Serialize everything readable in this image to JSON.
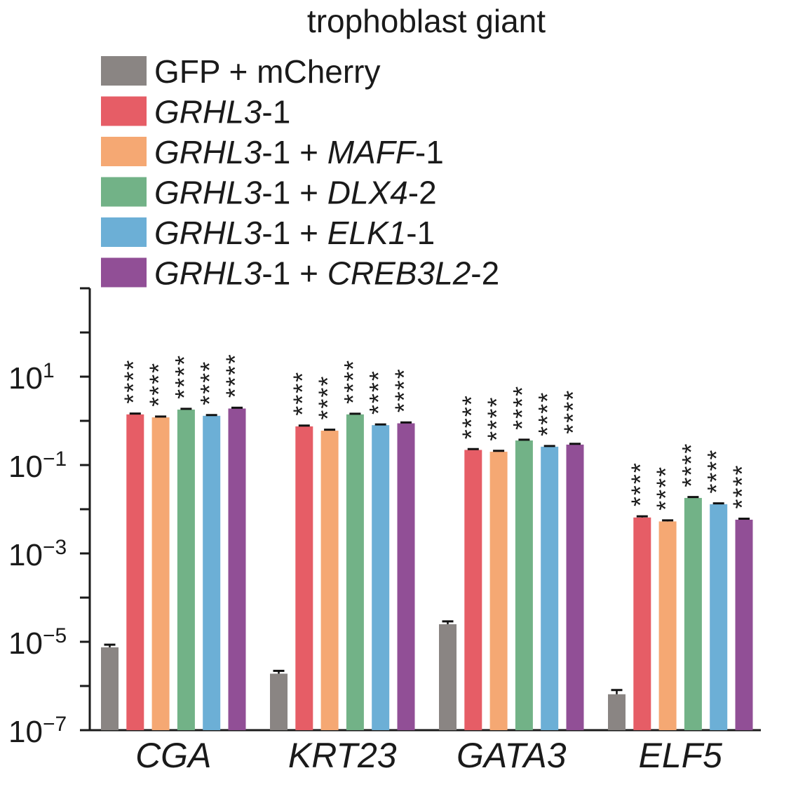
{
  "chart_data": {
    "type": "bar",
    "title": "trophoblast giant",
    "yscale": "log",
    "ylim": [
      1e-07,
      1000
    ],
    "ytick_labels": [
      {
        "base": "10",
        "exp": "1",
        "value": 10
      },
      {
        "base": "10",
        "exp": "−1",
        "value": 0.1
      },
      {
        "base": "10",
        "exp": "−3",
        "value": 0.001
      },
      {
        "base": "10",
        "exp": "−5",
        "value": 1e-05
      },
      {
        "base": "10",
        "exp": "−7",
        "value": 1e-07
      }
    ],
    "categories": [
      "CGA",
      "KRT23",
      "GATA3",
      "ELF5"
    ],
    "series": [
      {
        "name": "GFP + mCherry",
        "name_parts": [
          {
            "t": "GFP + mCherry",
            "i": false
          }
        ],
        "color": "#8a8583",
        "values": [
          7.5e-06,
          1.9e-06,
          2.5e-05,
          6.5e-07
        ],
        "error": [
          1.1e-06,
          3e-07,
          4e-06,
          1.6e-07
        ],
        "stars": [
          "",
          "",
          "",
          ""
        ]
      },
      {
        "name": "GRHL3-1",
        "name_parts": [
          {
            "t": "GRHL3",
            "i": true
          },
          {
            "t": "-1",
            "i": false
          }
        ],
        "color": "#e65d66",
        "values": [
          1.4,
          0.75,
          0.22,
          0.0065
        ],
        "error": [
          0.06,
          0.03,
          0.01,
          0.0004
        ],
        "stars": [
          "****",
          "****",
          "****",
          "****"
        ]
      },
      {
        "name": "GRHL3-1 + MAFF-1",
        "name_parts": [
          {
            "t": "GRHL3",
            "i": true
          },
          {
            "t": "-1 + ",
            "i": false
          },
          {
            "t": "MAFF",
            "i": true
          },
          {
            "t": "-1",
            "i": false
          }
        ],
        "color": "#f5a873",
        "values": [
          1.2,
          0.6,
          0.2,
          0.0053
        ],
        "error": [
          0.05,
          0.03,
          0.01,
          0.0003
        ],
        "stars": [
          "****",
          "****",
          "****",
          "****"
        ]
      },
      {
        "name": "GRHL3-1 + DLX4-2",
        "name_parts": [
          {
            "t": "GRHL3",
            "i": true
          },
          {
            "t": "-1 + ",
            "i": false
          },
          {
            "t": "DLX4",
            "i": true
          },
          {
            "t": "-2",
            "i": false
          }
        ],
        "color": "#72b287",
        "values": [
          1.8,
          1.4,
          0.36,
          0.018
        ],
        "error": [
          0.07,
          0.05,
          0.015,
          0.0009
        ],
        "stars": [
          "****",
          "****",
          "****",
          "****"
        ]
      },
      {
        "name": "GRHL3-1 + ELK1-1",
        "name_parts": [
          {
            "t": "GRHL3",
            "i": true
          },
          {
            "t": "-1 + ",
            "i": false
          },
          {
            "t": "ELK1",
            "i": true
          },
          {
            "t": "-1",
            "i": false
          }
        ],
        "color": "#6cafd6",
        "values": [
          1.3,
          0.8,
          0.26,
          0.013
        ],
        "error": [
          0.05,
          0.03,
          0.01,
          0.0006
        ],
        "stars": [
          "****",
          "****",
          "****",
          "****"
        ]
      },
      {
        "name": "GRHL3-1 + CREB3L2-2",
        "name_parts": [
          {
            "t": "GRHL3",
            "i": true
          },
          {
            "t": "-1 + ",
            "i": false
          },
          {
            "t": "CREB3L2",
            "i": true
          },
          {
            "t": "-2",
            "i": false
          }
        ],
        "color": "#914f96",
        "values": [
          1.9,
          0.88,
          0.29,
          0.0058
        ],
        "error": [
          0.08,
          0.04,
          0.012,
          0.0003
        ],
        "stars": [
          "****",
          "****",
          "****",
          "****"
        ]
      }
    ],
    "grid": false,
    "legend_position": "top"
  }
}
